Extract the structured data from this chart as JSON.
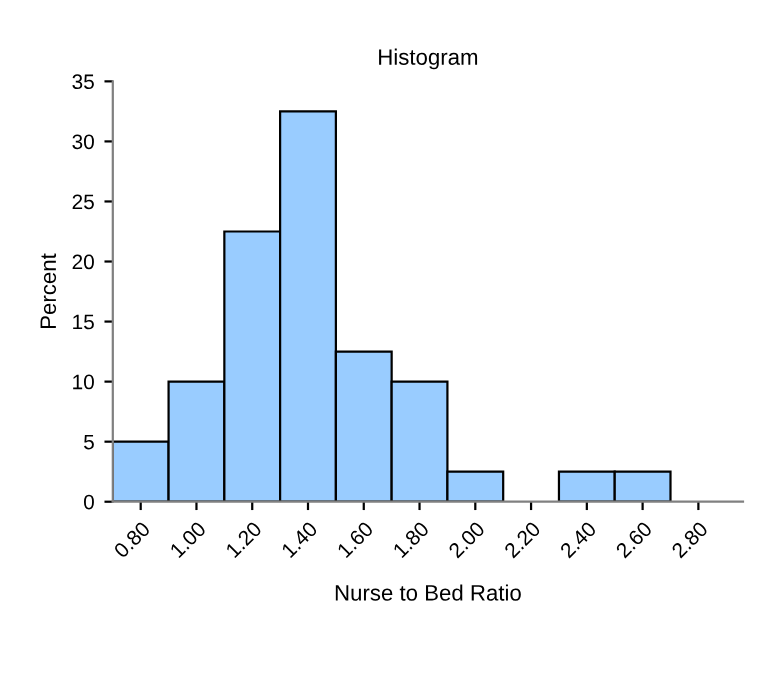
{
  "chart_data": {
    "type": "bar",
    "title": "Histogram",
    "xlabel": "Nurse to Bed Ratio",
    "ylabel": "Percent",
    "categories": [
      "0.80",
      "1.00",
      "1.20",
      "1.40",
      "1.60",
      "1.80",
      "2.00",
      "2.20",
      "2.40",
      "2.60",
      "2.80"
    ],
    "values": [
      5,
      10,
      22.5,
      32.5,
      12.5,
      10,
      2.5,
      0,
      2.5,
      2.5,
      0
    ],
    "color": "#99ccff",
    "ylim": [
      0,
      35
    ],
    "yticks": [
      0,
      5,
      10,
      15,
      20,
      25,
      30,
      35
    ],
    "grid": false,
    "legend": false
  }
}
